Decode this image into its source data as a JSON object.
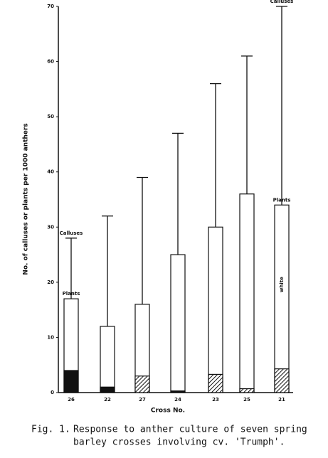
{
  "chart_data": {
    "type": "bar",
    "ylabel": "No. of calluses or plants per 1000 anthers",
    "xlabel": "Cross No.",
    "categories": [
      "26",
      "22",
      "27",
      "24",
      "23",
      "25",
      "21"
    ],
    "series": [
      {
        "name": "Calluses",
        "style": "whisker",
        "color": "#111111",
        "values": [
          28,
          32,
          39,
          47,
          56,
          61,
          70
        ]
      },
      {
        "name": "Plants",
        "style": "bar",
        "color": "#ffffff",
        "values": [
          17,
          12,
          16,
          25,
          30,
          36,
          34
        ]
      },
      {
        "style": "segment",
        "color": "#111111",
        "patterns": [
          "solid",
          "solid",
          "hatch",
          "solid",
          "hatch",
          "hatch",
          "hatch"
        ],
        "values": [
          4,
          1,
          3,
          0.3,
          3.3,
          0.7,
          4.3
        ]
      }
    ],
    "annotations": [
      {
        "text": "Calluses",
        "series": 0,
        "category": 0
      },
      {
        "text": "Plants",
        "series": 1,
        "category": 0
      },
      {
        "text": "Calluses",
        "series": 0,
        "category": 6
      },
      {
        "text": "Plants",
        "series": 1,
        "category": 6
      },
      {
        "text": "white",
        "series": 1,
        "category": 6,
        "inside": true
      }
    ],
    "ylim": [
      0,
      70
    ],
    "yticks": [
      0,
      10,
      20,
      30,
      40,
      50,
      60,
      70
    ],
    "caption": {
      "label": "Fig. 1.",
      "lines": [
        "Response to anther culture of seven spring",
        "barley crosses involving cv. 'Trumph'."
      ]
    }
  }
}
